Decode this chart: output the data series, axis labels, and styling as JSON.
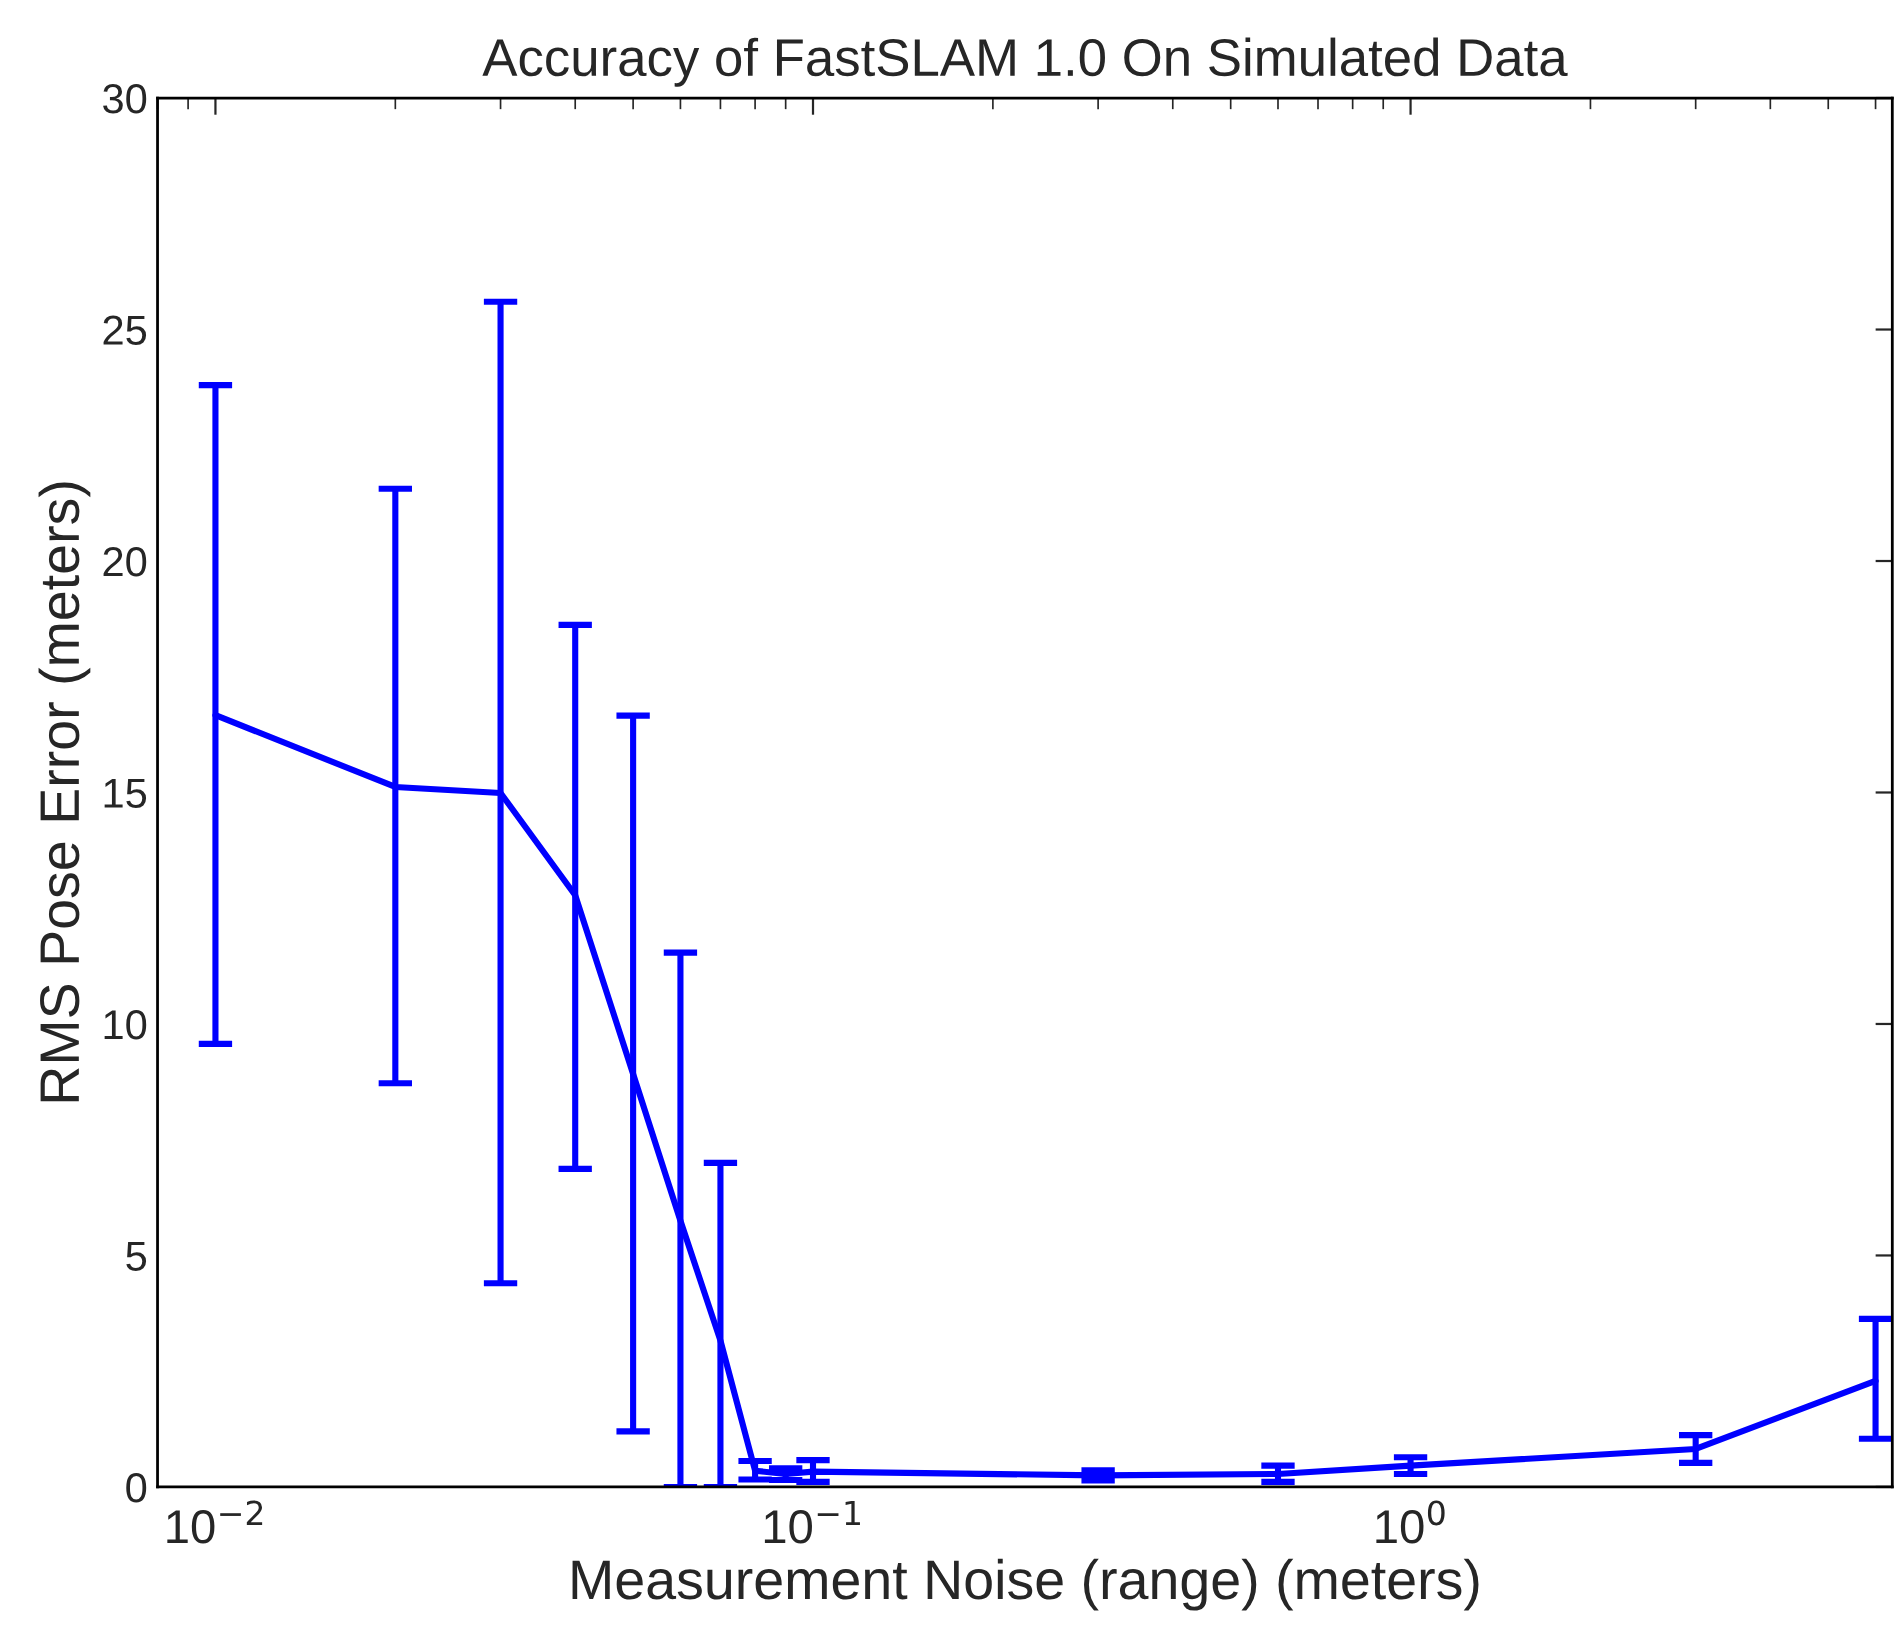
{
  "chart_data": {
    "type": "line",
    "title": "Accuracy of FastSLAM 1.0 On Simulated Data",
    "xlabel": "Measurement Noise (range) (meters)",
    "ylabel": "RMS Pose Error (meters)",
    "x": [
      0.01,
      0.02,
      0.03,
      0.04,
      0.05,
      0.06,
      0.07,
      0.08,
      0.09,
      0.1,
      0.3,
      0.6,
      1,
      3,
      6
    ],
    "series": [
      {
        "color": "#0000ff",
        "values": [
          16.67,
          15.12,
          14.99,
          12.78,
          8.92,
          5.75,
          3.16,
          0.35,
          0.28,
          0.33,
          0.25,
          0.28,
          0.46,
          0.82,
          2.29
        ],
        "errors": [
          [
            9.57,
            23.8
          ],
          [
            8.72,
            21.56
          ],
          [
            4.4,
            25.6
          ],
          [
            6.87,
            18.62
          ],
          [
            1.2,
            16.66
          ],
          [
            0,
            11.54
          ],
          [
            0,
            7.0
          ],
          [
            0.16,
            0.56
          ],
          [
            0.15,
            0.4
          ],
          [
            0.11,
            0.58
          ],
          [
            0.14,
            0.36
          ],
          [
            0.11,
            0.46
          ],
          [
            0.28,
            0.64
          ],
          [
            0.52,
            1.12
          ],
          [
            1.04,
            3.63
          ]
        ]
      }
    ],
    "log": "x",
    "xlim": [
      0.008,
      6.4
    ],
    "xticks": [
      {
        "value": 0.01,
        "label": "10$^{−2}$"
      },
      {
        "value": 0.1,
        "label": "10$^{−1}$"
      },
      {
        "value": 1,
        "label": "10$^{0}$"
      }
    ],
    "ylim": [
      0,
      30
    ],
    "yticks": [
      0,
      5,
      10,
      15,
      20,
      25,
      30
    ],
    "marker": "none",
    "line_style": "solid"
  }
}
